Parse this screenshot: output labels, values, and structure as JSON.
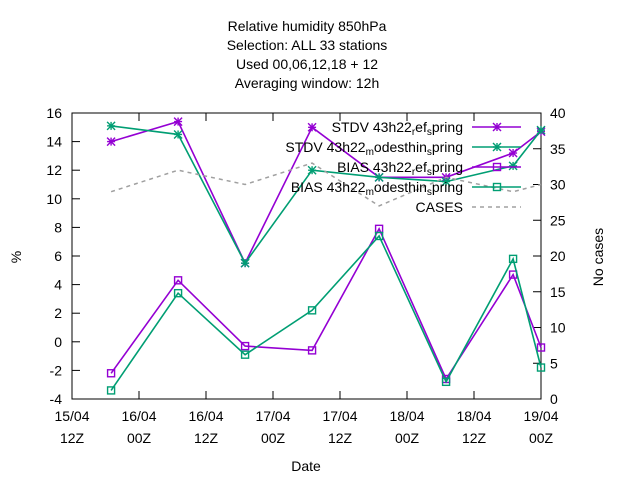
{
  "chart_data": {
    "type": "line",
    "title_lines": [
      "Relative humidity 850hPa",
      "Selection: ALL      33 stations",
      "Used  00,06,12,18  + 12",
      "Averaging window: 12h"
    ],
    "xlabel": "Date",
    "ylabel": "%",
    "y2label": "No cases",
    "x_ticks": [
      {
        "line1": "15/04",
        "line2": "12Z",
        "value": 0
      },
      {
        "line1": "16/04",
        "line2": "00Z",
        "value": 12
      },
      {
        "line1": "16/04",
        "line2": "12Z",
        "value": 24
      },
      {
        "line1": "17/04",
        "line2": "00Z",
        "value": 36
      },
      {
        "line1": "17/04",
        "line2": "12Z",
        "value": 48
      },
      {
        "line1": "18/04",
        "line2": "00Z",
        "value": 60
      },
      {
        "line1": "18/04",
        "line2": "12Z",
        "value": 72
      },
      {
        "line1": "19/04",
        "line2": "00Z",
        "value": 84
      }
    ],
    "x_range": [
      0,
      84
    ],
    "ylim": [
      -4,
      16
    ],
    "y_ticks": [
      "16",
      "14",
      "12",
      "10",
      "8",
      "6",
      "4",
      "2",
      "0",
      "-2",
      "-4"
    ],
    "y2lim": [
      0,
      40
    ],
    "y2_ticks": [
      "40",
      "35",
      "30",
      "25",
      "20",
      "15",
      "10",
      "5",
      "0"
    ],
    "x_points": [
      7,
      19,
      31,
      43,
      55,
      67,
      79,
      84
    ],
    "series": [
      {
        "name_parts": [
          "STDV 43h22",
          "r",
          "ef",
          "s",
          "pring"
        ],
        "axis": "y1",
        "color": "#9400d3",
        "marker": "star",
        "values": [
          14.0,
          15.4,
          5.5,
          15.0,
          11.5,
          11.5,
          13.2,
          14.7
        ]
      },
      {
        "name_parts": [
          "STDV 43h22",
          "m",
          "odesthin",
          "s",
          "pring"
        ],
        "axis": "y1",
        "color": "#009e73",
        "marker": "star",
        "values": [
          15.1,
          14.5,
          5.5,
          12.0,
          11.5,
          11.2,
          12.3,
          14.8
        ]
      },
      {
        "name_parts": [
          "BIAS 43h22",
          "r",
          "ef",
          "s",
          "pring"
        ],
        "axis": "y1",
        "color": "#9400d3",
        "marker": "square",
        "values": [
          -2.2,
          4.3,
          -0.3,
          -0.6,
          7.9,
          -2.6,
          4.7,
          -0.4
        ]
      },
      {
        "name_parts": [
          "BIAS 43h22",
          "m",
          "odesthin",
          "s",
          "pring"
        ],
        "axis": "y1",
        "color": "#009e73",
        "marker": "square",
        "values": [
          -3.4,
          3.4,
          -0.9,
          2.2,
          7.4,
          -2.8,
          5.8,
          -1.8
        ]
      },
      {
        "name_parts": [
          "CASES"
        ],
        "axis": "y2",
        "color": "#a0a0a0",
        "dashed": true,
        "values": [
          29,
          32,
          30,
          33,
          27,
          31,
          29,
          30
        ]
      }
    ],
    "legend_position": "top-right",
    "grid": false
  }
}
